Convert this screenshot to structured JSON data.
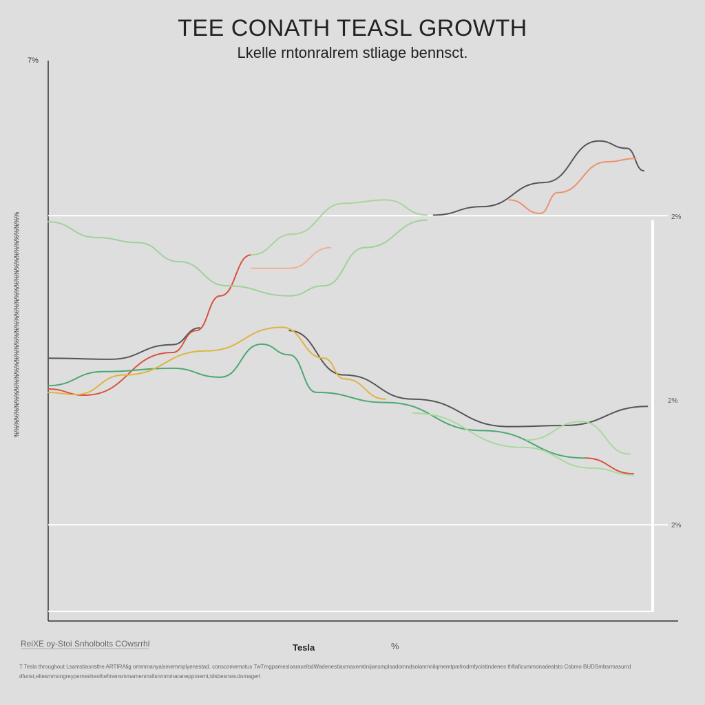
{
  "chart_data": {
    "type": "line",
    "title": "TEE CONATH TEASL GROWTH",
    "subtitle": "Lkelle rntonralrem stliage bennsct.",
    "ylabel": "%%%%%%%%%%%%%%%%%%%%%%%%%%%%%%%%%%%%%%%",
    "y_top_label": "7%",
    "right_labels": [
      "2%",
      "2%",
      "2%"
    ],
    "xlim": [
      0,
      100
    ],
    "ylim": [
      0,
      100
    ],
    "gridlines_y": [
      72,
      16.9
    ],
    "grid": true,
    "series": [
      {
        "color": "#555555",
        "points": [
          [
            0,
            46.6
          ],
          [
            10.2,
            46.4
          ],
          [
            20.5,
            49
          ],
          [
            25,
            52
          ]
        ]
      },
      {
        "color": "#555555",
        "points": [
          [
            63.6,
            72.1
          ],
          [
            71.6,
            73.6
          ],
          [
            81.8,
            77.9
          ],
          [
            90.9,
            85.3
          ],
          [
            95.5,
            84
          ],
          [
            98.3,
            80
          ]
        ]
      },
      {
        "color": "#555555",
        "points": [
          [
            39.8,
            51.5
          ],
          [
            48.9,
            43.6
          ],
          [
            60.2,
            39.3
          ],
          [
            76.1,
            34.4
          ],
          [
            85.2,
            34.6
          ],
          [
            98.9,
            38
          ]
        ]
      },
      {
        "color": "#d9513c",
        "points": [
          [
            0,
            41.1
          ],
          [
            6,
            40
          ],
          [
            20.5,
            47.6
          ],
          [
            24.4,
            51.5
          ],
          [
            28.4,
            57.7
          ],
          [
            33.5,
            65
          ]
        ]
      },
      {
        "color": "#d9513c",
        "points": [
          [
            88.6,
            28.8
          ],
          [
            96.6,
            26
          ]
        ]
      },
      {
        "color": "#9fd19a",
        "points": [
          [
            0,
            70.9
          ],
          [
            8,
            68.1
          ],
          [
            14.8,
            67.2
          ],
          [
            21.6,
            63.8
          ],
          [
            29.5,
            59.5
          ],
          [
            39.8,
            57.7
          ],
          [
            45.5,
            59.5
          ],
          [
            52.3,
            66.3
          ],
          [
            62.5,
            71.2
          ]
        ]
      },
      {
        "color": "#a8d49a",
        "points": [
          [
            33.5,
            65
          ],
          [
            40.3,
            68.7
          ],
          [
            48.9,
            74.2
          ],
          [
            55.7,
            74.8
          ],
          [
            62.5,
            72.1
          ]
        ]
      },
      {
        "color": "#4aa870",
        "points": [
          [
            0,
            41.7
          ],
          [
            9.1,
            44.2
          ],
          [
            20.5,
            44.8
          ],
          [
            28.4,
            43.2
          ],
          [
            35.2,
            49.1
          ],
          [
            39.8,
            47.2
          ],
          [
            44.3,
            40.5
          ],
          [
            55.7,
            38.7
          ],
          [
            71.6,
            33.7
          ],
          [
            88.6,
            28.8
          ]
        ]
      },
      {
        "color": "#a9d8a0",
        "points": [
          [
            60.2,
            36.8
          ],
          [
            78.4,
            30.7
          ],
          [
            89.8,
            27
          ],
          [
            96.6,
            25.8
          ]
        ]
      },
      {
        "color": "#a9d8a0",
        "points": [
          [
            79,
            32
          ],
          [
            88,
            35.3
          ],
          [
            96,
            29.5
          ]
        ]
      },
      {
        "color": "#e0b340",
        "points": [
          [
            0,
            40.5
          ],
          [
            4.5,
            40.1
          ],
          [
            12.5,
            43.6
          ],
          [
            26.1,
            47.9
          ],
          [
            38.6,
            52.1
          ],
          [
            45.5,
            46.6
          ],
          [
            48.9,
            42.9
          ],
          [
            55.7,
            39.3
          ]
        ]
      },
      {
        "color": "#f0b090",
        "points": [
          [
            33.5,
            62.6
          ],
          [
            39.8,
            62.6
          ],
          [
            46.6,
            66.3
          ]
        ]
      },
      {
        "color": "#ee9070",
        "points": [
          [
            76.1,
            74.8
          ],
          [
            81.2,
            72.4
          ],
          [
            84.1,
            76.1
          ],
          [
            92.3,
            81.6
          ],
          [
            97,
            82.2
          ]
        ]
      }
    ]
  },
  "legend": {
    "source": "ReiXE oy-Stoi Snholbolts COwsrrhl",
    "item1": "Tesla",
    "item2": "%"
  },
  "footnotes": [
    "T Tesla  throughout  Lsamstiasnsthe  ARTIRAlig  ommmanyalsmemmplyenestad.  conscomemotus  TwTmgpamesloaraxelbdWadenestlaxmaxemtinijansmplsadomndsolanmnilqmemtpmfrodmfyoistindenes  thfiaficummonadealsto  Csbmo  BUDSmbsrmasurrd",
    "dfunst,eltesmmongreyperneshesthefmensmmamenmslisnmmmaranepproemt,tdsbesnsw.domagert"
  ]
}
